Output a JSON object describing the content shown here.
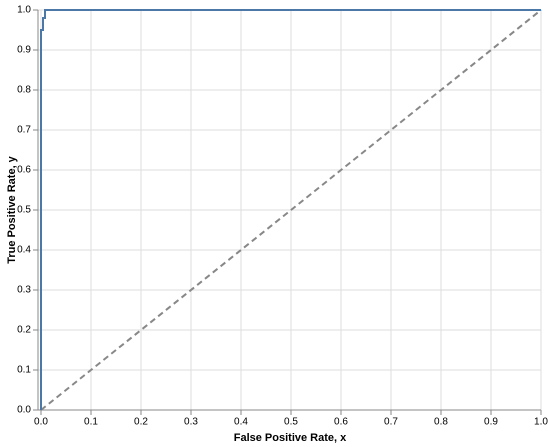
{
  "chart_data": {
    "type": "line",
    "x_label": "False Positive Rate, x",
    "y_label": "True Positive Rate, y",
    "xlim": [
      -0.006,
      1
    ],
    "ylim": [
      0,
      1
    ],
    "xticks": [
      {
        "value": 0,
        "label": "0.0"
      },
      0.1,
      0.2,
      0.3,
      0.4,
      0.5,
      0.6,
      0.7,
      0.8,
      0.9,
      {
        "value": 1,
        "label": "1.0"
      }
    ],
    "yticks": [
      {
        "value": 0,
        "label": "0.0"
      },
      0.1,
      0.2,
      0.3,
      0.4,
      0.5,
      0.6,
      0.7,
      0.8,
      0.9,
      {
        "value": 1,
        "label": "1.0"
      }
    ],
    "grid": true,
    "series": [
      {
        "color": "#4c78a8",
        "dashed": false,
        "x": [
          0,
          0,
          0.004,
          0.004,
          0.008,
          0.008,
          1
        ],
        "values": [
          0,
          0.95,
          0.95,
          0.98,
          0.98,
          1,
          1
        ]
      },
      {
        "color": "#888888",
        "dashed": true,
        "x": [
          0,
          1
        ],
        "values": [
          0,
          1
        ]
      }
    ]
  }
}
